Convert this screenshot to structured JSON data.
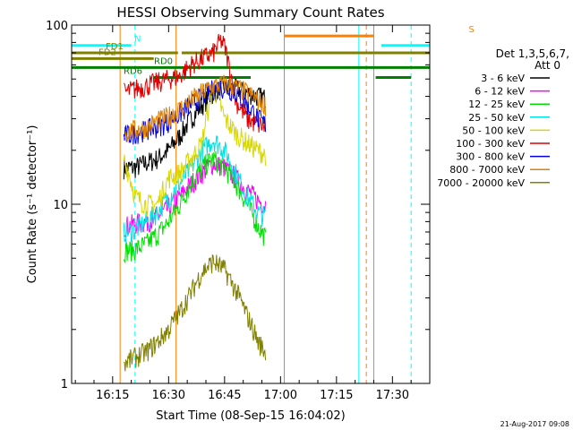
{
  "chart_data": {
    "type": "line",
    "title": "HESSI Observing Summary Count Rates",
    "xlabel": "Start Time (08-Sep-15 16:04:02)",
    "ylabel": "Count Rate (s⁻¹ detector⁻¹)",
    "yscale": "log",
    "ylim": [
      1,
      100
    ],
    "xlim_minutes_after_1604": [
      0,
      96
    ],
    "x_ticks": [
      {
        "label": "16:15",
        "min": 11
      },
      {
        "label": "16:30",
        "min": 26
      },
      {
        "label": "16:45",
        "min": 41
      },
      {
        "label": "17:00",
        "min": 56
      },
      {
        "label": "17:15",
        "min": 71
      },
      {
        "label": "17:30",
        "min": 86
      }
    ],
    "y_ticks": [
      {
        "label": "1",
        "value": 1
      },
      {
        "label": "10",
        "value": 10
      },
      {
        "label": "100",
        "value": 100
      }
    ],
    "legend": {
      "placement": "right",
      "header": [
        "Det 1,3,5,6,7,",
        "Att 0"
      ],
      "entries": [
        {
          "name": "3 - 6 keV",
          "color": "#000000"
        },
        {
          "name": "6 - 12 keV",
          "color": "#ff00ff"
        },
        {
          "name": "12 - 25 keV",
          "color": "#00e000"
        },
        {
          "name": "25 - 50 keV",
          "color": "#00e0e0"
        },
        {
          "name": "50 - 100 keV",
          "color": "#d8d800"
        },
        {
          "name": "100 - 300 keV",
          "color": "#e00000"
        },
        {
          "name": "300 - 800 keV",
          "color": "#0000e0"
        },
        {
          "name": "800 - 7000 keV",
          "color": "#e08000"
        },
        {
          "name": "7000 - 20000 keV",
          "color": "#808000"
        }
      ]
    },
    "series": [
      {
        "name": "3 - 6 keV",
        "color": "#000000",
        "x": [
          14,
          17,
          20,
          23,
          26,
          29,
          32,
          35,
          38,
          41,
          44,
          47,
          50,
          52
        ],
        "y": [
          16,
          16,
          17,
          18,
          20,
          24,
          30,
          36,
          42,
          45,
          44,
          42,
          40,
          39
        ]
      },
      {
        "name": "6 - 12 keV",
        "color": "#ff00ff",
        "x": [
          14,
          17,
          20,
          23,
          26,
          29,
          32,
          35,
          38,
          41,
          44,
          47,
          50,
          52
        ],
        "y": [
          7.5,
          7.8,
          8.0,
          8.5,
          9.5,
          11,
          13,
          15,
          17,
          16,
          14,
          12,
          10.5,
          10
        ]
      },
      {
        "name": "12 - 25 keV",
        "color": "#00e000",
        "x": [
          14,
          17,
          20,
          23,
          26,
          29,
          32,
          35,
          38,
          41,
          44,
          47,
          50,
          52
        ],
        "y": [
          5.5,
          5.6,
          6.0,
          6.8,
          8.0,
          10,
          13,
          16,
          18,
          16,
          13,
          10,
          7.5,
          6.5
        ]
      },
      {
        "name": "25 - 50 keV",
        "color": "#00e0e0",
        "x": [
          14,
          17,
          20,
          23,
          26,
          29,
          32,
          35,
          38,
          41,
          44,
          47,
          50,
          52
        ],
        "y": [
          7,
          7.2,
          8,
          9,
          11,
          13,
          16,
          20,
          23,
          20,
          15,
          11,
          9,
          8.5
        ]
      },
      {
        "name": "50 - 100 keV",
        "color": "#d8d800",
        "x": [
          14,
          17,
          20,
          23,
          26,
          29,
          32,
          35,
          38,
          41,
          44,
          47,
          50,
          52
        ],
        "y": [
          18,
          11,
          10,
          10,
          14,
          15,
          18,
          22,
          45,
          30,
          25,
          22,
          20,
          19
        ]
      },
      {
        "name": "100 - 300 keV",
        "color": "#e00000",
        "x": [
          14,
          17,
          20,
          23,
          26,
          29,
          32,
          35,
          38,
          40,
          41,
          42,
          44,
          47,
          50,
          52
        ],
        "y": [
          42,
          44,
          46,
          48,
          50,
          52,
          60,
          65,
          70,
          82,
          76,
          62,
          38,
          30,
          28,
          27
        ]
      },
      {
        "name": "300 - 800 keV",
        "color": "#0000e0",
        "x": [
          14,
          17,
          20,
          23,
          26,
          29,
          32,
          35,
          38,
          41,
          44,
          47,
          50,
          52
        ],
        "y": [
          24,
          25,
          26,
          27,
          29,
          32,
          36,
          40,
          44,
          45,
          42,
          36,
          30,
          28
        ]
      },
      {
        "name": "800 - 7000 keV",
        "color": "#e08000",
        "x": [
          14,
          17,
          20,
          23,
          26,
          29,
          32,
          35,
          38,
          41,
          44,
          47,
          50,
          52
        ],
        "y": [
          25,
          26,
          27,
          29,
          31,
          34,
          38,
          42,
          46,
          47,
          45,
          42,
          38,
          36
        ]
      },
      {
        "name": "7000 - 20000 keV",
        "color": "#808000",
        "x": [
          14,
          17,
          20,
          23,
          26,
          29,
          32,
          35,
          38,
          41,
          44,
          47,
          50,
          52
        ],
        "y": [
          1.3,
          1.4,
          1.5,
          1.7,
          2.0,
          2.5,
          3.2,
          4.2,
          4.8,
          4.3,
          3.3,
          2.4,
          1.7,
          1.5
        ]
      }
    ],
    "flag_bars": [
      {
        "name": "N",
        "color": "#00ffff",
        "level": 77,
        "segments": [
          [
            0,
            16
          ],
          [
            83,
            96
          ]
        ]
      },
      {
        "name": "S",
        "color": "#ff8000",
        "level": 87,
        "segments": [
          [
            57,
            81
          ]
        ]
      },
      {
        "name": "FD1",
        "color": "#808000",
        "level": 70,
        "segments": [
          [
            0,
            28.5
          ],
          [
            29.5,
            96
          ]
        ]
      },
      {
        "name": "FD2",
        "color": "#808000",
        "level": 65,
        "segments": [
          [
            0,
            22
          ]
        ]
      },
      {
        "name": "RD0",
        "color": "#008000",
        "level": 58,
        "segments": [
          [
            0,
            96
          ]
        ]
      },
      {
        "name": "RD6",
        "color": "#008000",
        "level": 51,
        "segments": [
          [
            22,
            48
          ],
          [
            81.5,
            91
          ]
        ]
      }
    ],
    "vertical_markers": [
      {
        "name": "saa-start",
        "color": "#00ffff",
        "style": "solid",
        "min": 0
      },
      {
        "name": "saa-dash-1",
        "color": "#00ffff",
        "style": "dashed",
        "min": 17
      },
      {
        "name": "night-1",
        "color": "#ff8000",
        "style": "solid",
        "min": 13
      },
      {
        "name": "night-2",
        "color": "#ff8000",
        "style": "solid",
        "min": 28
      },
      {
        "name": "night-3",
        "color": "#ff8000",
        "style": "solid",
        "min": 57
      },
      {
        "name": "saa-solid-2",
        "color": "#00ffff",
        "style": "solid",
        "min": 77
      },
      {
        "name": "night-dash",
        "color": "#ff8000",
        "style": "dashed",
        "min": 79
      },
      {
        "name": "night-4",
        "color": "#ff8000",
        "style": "solid",
        "min": 81
      },
      {
        "name": "saa-dash-2",
        "color": "#00ffff",
        "style": "dashed",
        "min": 91
      }
    ],
    "footer_date": "21-Aug-2017 09:08"
  }
}
